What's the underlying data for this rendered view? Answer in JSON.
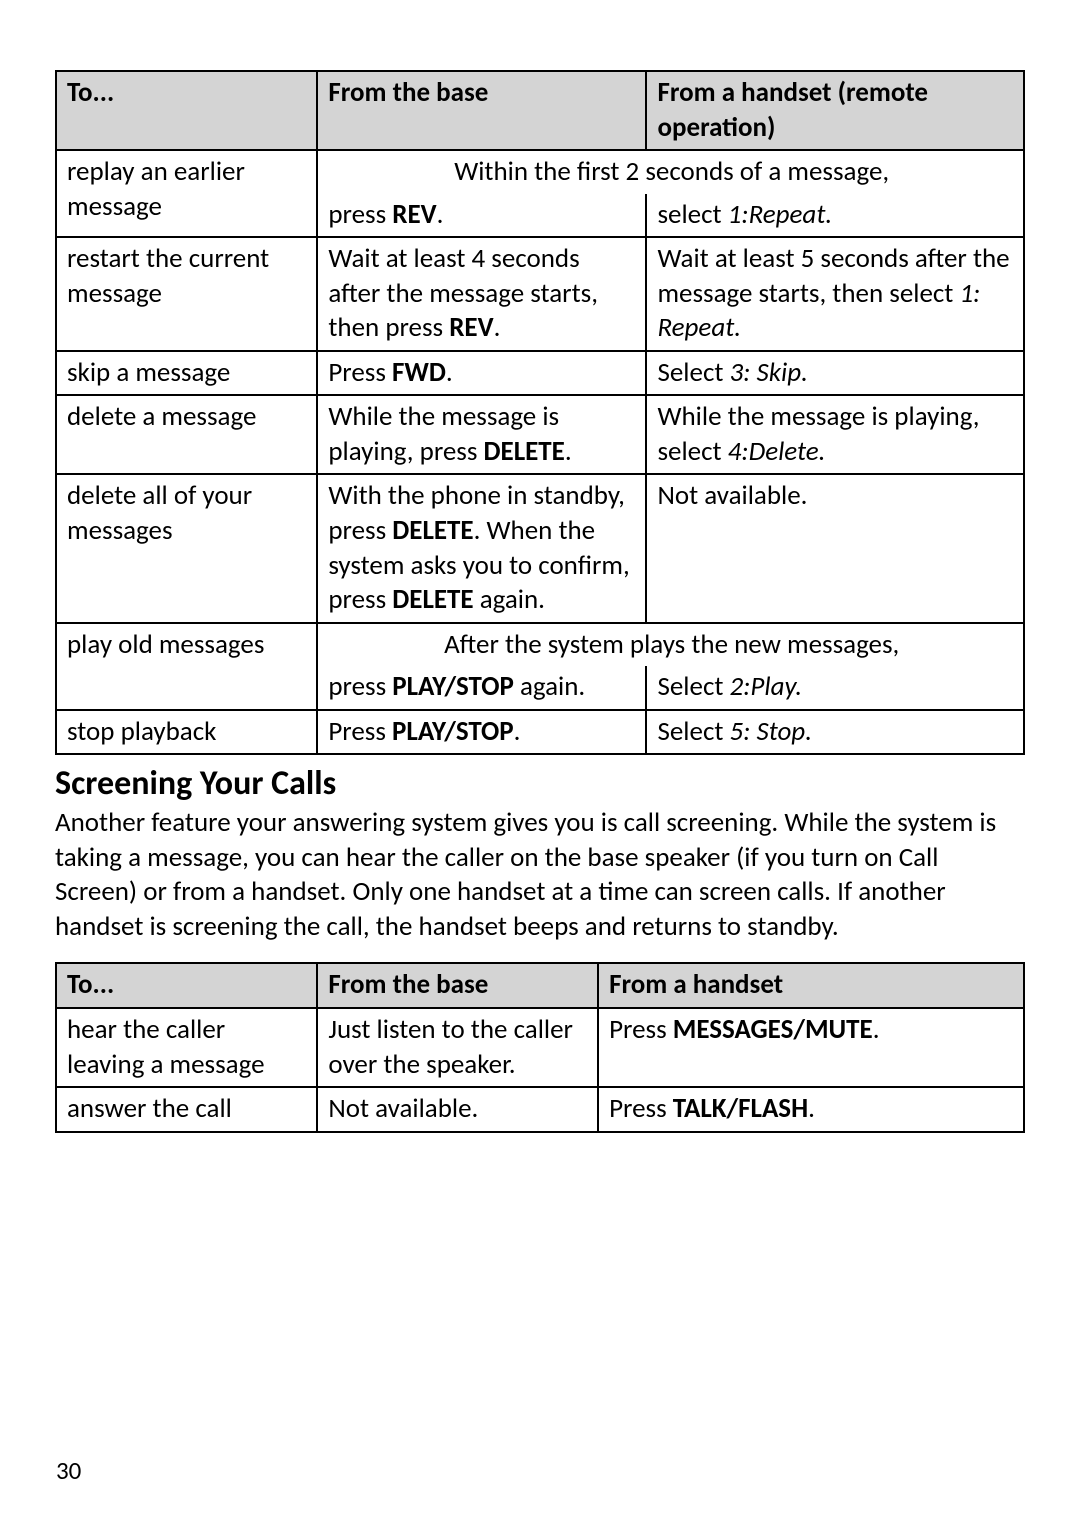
{
  "table1": {
    "col_widths": [
      "27%",
      "34%",
      "39%"
    ],
    "header": {
      "c1": "To...",
      "c2": "From the base",
      "c3": "From a handset (remote operation)"
    },
    "rows": [
      {
        "type": "span-then-split",
        "c1": "replay an earlier message",
        "span_text": "Within the first 2 seconds of a message,",
        "c2_pre": "press ",
        "c2_b": "REV",
        "c2_post": ".",
        "c3_pre": "select ",
        "c3_i": "1:Repeat.",
        "c3_post": ""
      },
      {
        "type": "normal",
        "c1": "restart the current message",
        "c2_pre": "Wait at least 4 seconds after the message starts, then press ",
        "c2_b": "REV",
        "c2_post": ".",
        "c3_pre": "Wait at least 5 seconds after the message starts, then select ",
        "c3_i": "1: Repeat.",
        "c3_post": ""
      },
      {
        "type": "normal",
        "c1": "skip a message",
        "c2_pre": "Press ",
        "c2_b": "FWD",
        "c2_post": ".",
        "c3_pre": "Select ",
        "c3_i": "3: Skip.",
        "c3_post": ""
      },
      {
        "type": "normal",
        "c1": "delete a message",
        "c2_pre": "While the message is playing, press ",
        "c2_b": "DELETE",
        "c2_post": ".",
        "c3_pre": "While the message is playing, select ",
        "c3_i": "4:Delete.",
        "c3_post": ""
      },
      {
        "type": "delete-all",
        "c1": "delete all of your messages",
        "c2_p1": "With the phone in standby, press ",
        "c2_b1": "DELETE",
        "c2_p2": ". When the system asks you to confirm, press ",
        "c2_b2": "DELETE",
        "c2_p3": " again.",
        "c3": "Not available."
      },
      {
        "type": "span-then-split",
        "c1": "play old messages",
        "span_text": "After the system plays the new messages,",
        "c2_pre": "press ",
        "c2_b": "PLAY/STOP",
        "c2_post": " again.",
        "c3_pre": "Select ",
        "c3_i": "2:Play.",
        "c3_post": ""
      },
      {
        "type": "normal",
        "c1": "stop playback",
        "c2_pre": "Press ",
        "c2_b": "PLAY/STOP",
        "c2_post": ".",
        "c3_pre": "Select ",
        "c3_i": "5: Stop.",
        "c3_post": ""
      }
    ]
  },
  "section_title": "Screening Your Calls",
  "section_para": "Another feature your answering system gives you is call screening. While the system is taking a message, you can hear the caller on the base speaker (if you turn on Call Screen) or from a handset. Only one handset at a time can screen calls. If another handset is screening the call, the handset beeps and returns to standby.",
  "table2": {
    "col_widths": [
      "27%",
      "29%",
      "44%"
    ],
    "header": {
      "c1": "To...",
      "c2": "From the base",
      "c3": "From a handset"
    },
    "rows": [
      {
        "c1": "hear the caller leaving a message",
        "c2": "Just listen to the caller over the speaker.",
        "c3_pre": "Press ",
        "c3_b": "MESSAGES/MUTE",
        "c3_post": "."
      },
      {
        "c1": "answer the call",
        "c2": "Not available.",
        "c3_pre": "Press ",
        "c3_b": "TALK/FLASH",
        "c3_post": "."
      }
    ]
  },
  "page_number": "30",
  "colors": {
    "header_bg": "#d4d4d4",
    "border": "#000000",
    "text": "#000000",
    "bg": "#ffffff"
  }
}
